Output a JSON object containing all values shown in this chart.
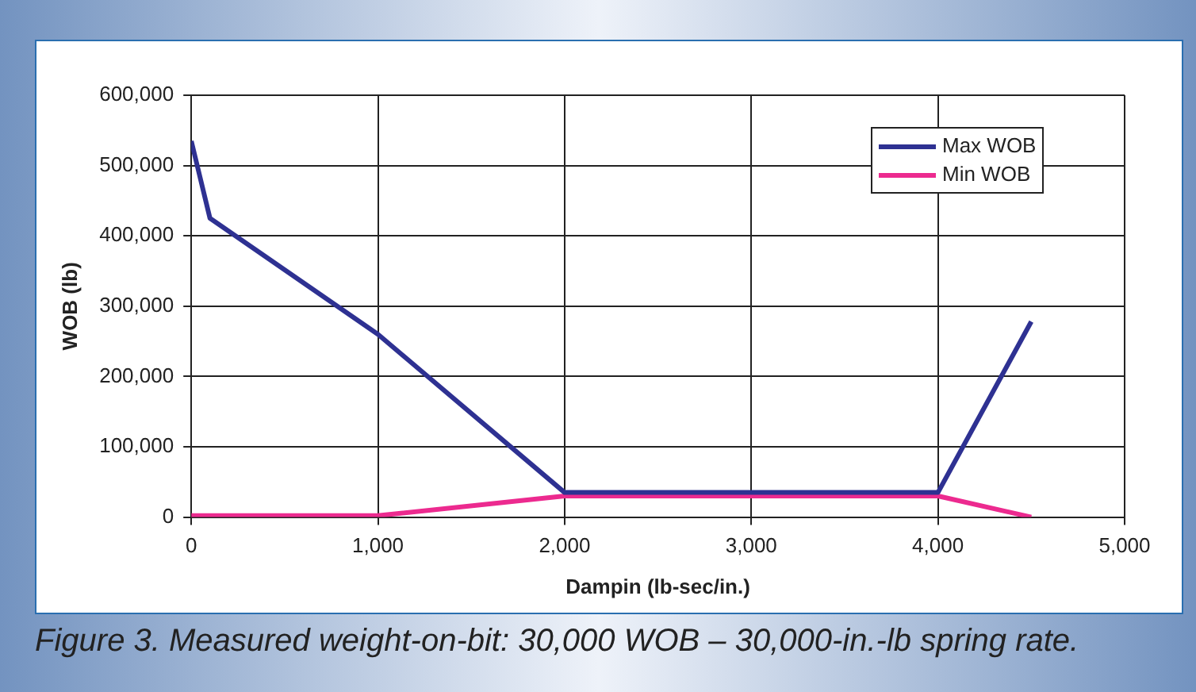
{
  "chart_data": {
    "type": "line",
    "xlabel": "Dampin (lb-sec/in.)",
    "ylabel": "WOB (lb)",
    "annotations": [
      "Figure 3. Measured weight-on-bit: 30,000 WOB – 30,000-in.-lb spring rate."
    ],
    "series": [
      {
        "name": "Max WOB",
        "color": "#2e3192",
        "x": [
          0,
          100,
          1000,
          2000,
          4000,
          4500
        ],
        "values": [
          535000,
          425000,
          260000,
          35000,
          35000,
          278000
        ]
      },
      {
        "name": "Min WOB",
        "color": "#ec2a8f",
        "x": [
          0,
          1000,
          2000,
          4000,
          4500
        ],
        "values": [
          2000,
          2000,
          30000,
          30000,
          0
        ]
      }
    ],
    "xlim": [
      0,
      5000
    ],
    "xticks": [
      0,
      {
        "value": 1000,
        "label": "1,000"
      },
      {
        "value": 2000,
        "label": "2,000"
      },
      {
        "value": 3000,
        "label": "3,000"
      },
      {
        "value": 4000,
        "label": "4,000"
      },
      {
        "value": 5000,
        "label": "5,000"
      }
    ],
    "ylim": [
      0,
      600000
    ],
    "yticks": [
      0,
      {
        "value": 100000,
        "label": "100,000"
      },
      {
        "value": 200000,
        "label": "200,000"
      },
      {
        "value": 300000,
        "label": "300,000"
      },
      {
        "value": 400000,
        "label": "400,000"
      },
      {
        "value": 500000,
        "label": "500,000"
      },
      {
        "value": 600000,
        "label": "600,000"
      }
    ],
    "grid": true,
    "legend": "top right",
    "marker": "none",
    "line_style": "solid"
  }
}
